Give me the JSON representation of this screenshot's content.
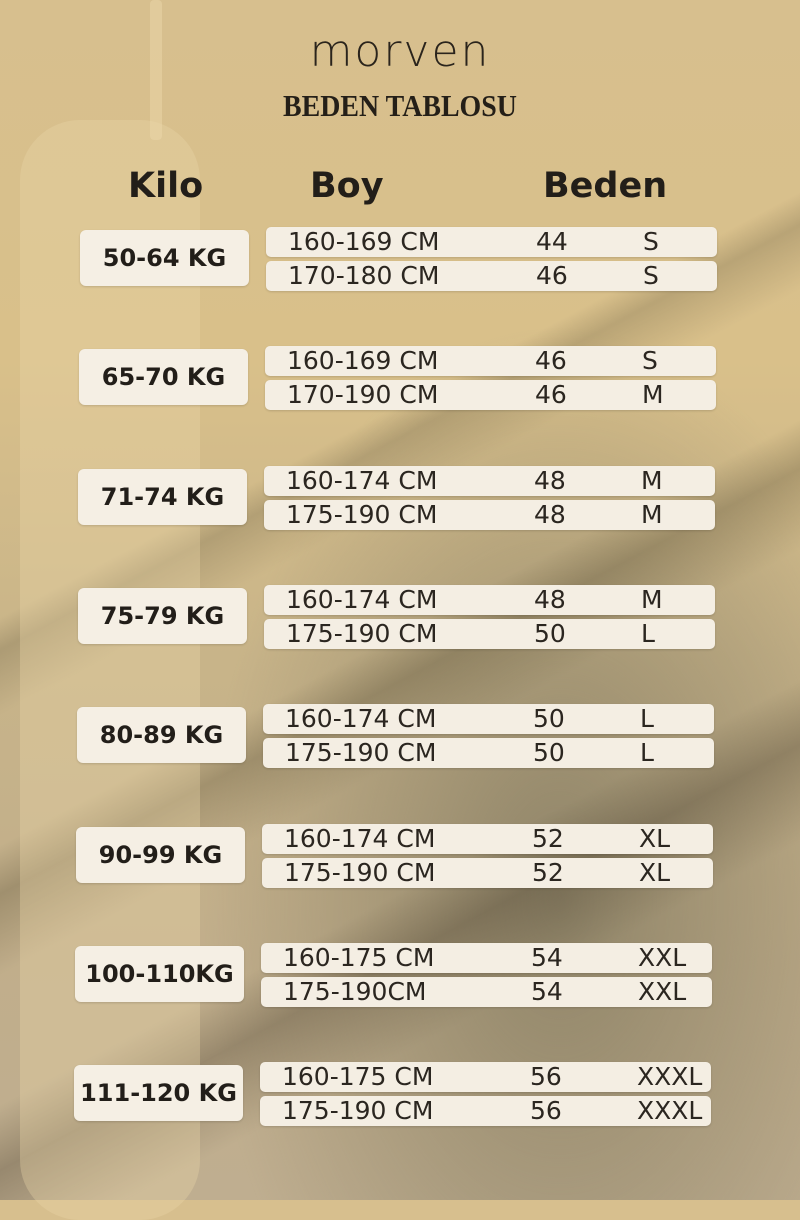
{
  "brand": "morven",
  "title": "BEDEN TABLOSU",
  "headers": {
    "kilo": "Kilo",
    "boy": "Boy",
    "beden": "Beden"
  },
  "groups": [
    {
      "kilo": "50-64 KG",
      "rows": [
        {
          "boy": "160-169 CM",
          "num": "44",
          "size": "S"
        },
        {
          "boy": "170-180 CM",
          "num": "46",
          "size": "S"
        }
      ]
    },
    {
      "kilo": "65-70 KG",
      "rows": [
        {
          "boy": "160-169 CM",
          "num": "46",
          "size": "S"
        },
        {
          "boy": "170-190 CM",
          "num": "46",
          "size": "M"
        }
      ]
    },
    {
      "kilo": "71-74 KG",
      "rows": [
        {
          "boy": "160-174 CM",
          "num": "48",
          "size": "M"
        },
        {
          "boy": "175-190 CM",
          "num": "48",
          "size": "M"
        }
      ]
    },
    {
      "kilo": "75-79 KG",
      "rows": [
        {
          "boy": "160-174 CM",
          "num": "48",
          "size": "M"
        },
        {
          "boy": "175-190 CM",
          "num": "50",
          "size": "L"
        }
      ]
    },
    {
      "kilo": "80-89 KG",
      "rows": [
        {
          "boy": "160-174 CM",
          "num": "50",
          "size": "L"
        },
        {
          "boy": "175-190 CM",
          "num": "50",
          "size": "L"
        }
      ]
    },
    {
      "kilo": "90-99 KG",
      "rows": [
        {
          "boy": "160-174 CM",
          "num": "52",
          "size": "XL"
        },
        {
          "boy": "175-190 CM",
          "num": "52",
          "size": "XL"
        }
      ]
    },
    {
      "kilo": "100-110KG",
      "rows": [
        {
          "boy": "160-175 CM",
          "num": "54",
          "size": "XXL"
        },
        {
          "boy": "175-190CM",
          "num": "54",
          "size": "XXL"
        }
      ]
    },
    {
      "kilo": "111-120 KG",
      "rows": [
        {
          "boy": "160-175 CM",
          "num": "56",
          "size": "XXXL"
        },
        {
          "boy": "175-190 CM",
          "num": "56",
          "size": "XXXL"
        }
      ]
    }
  ]
}
